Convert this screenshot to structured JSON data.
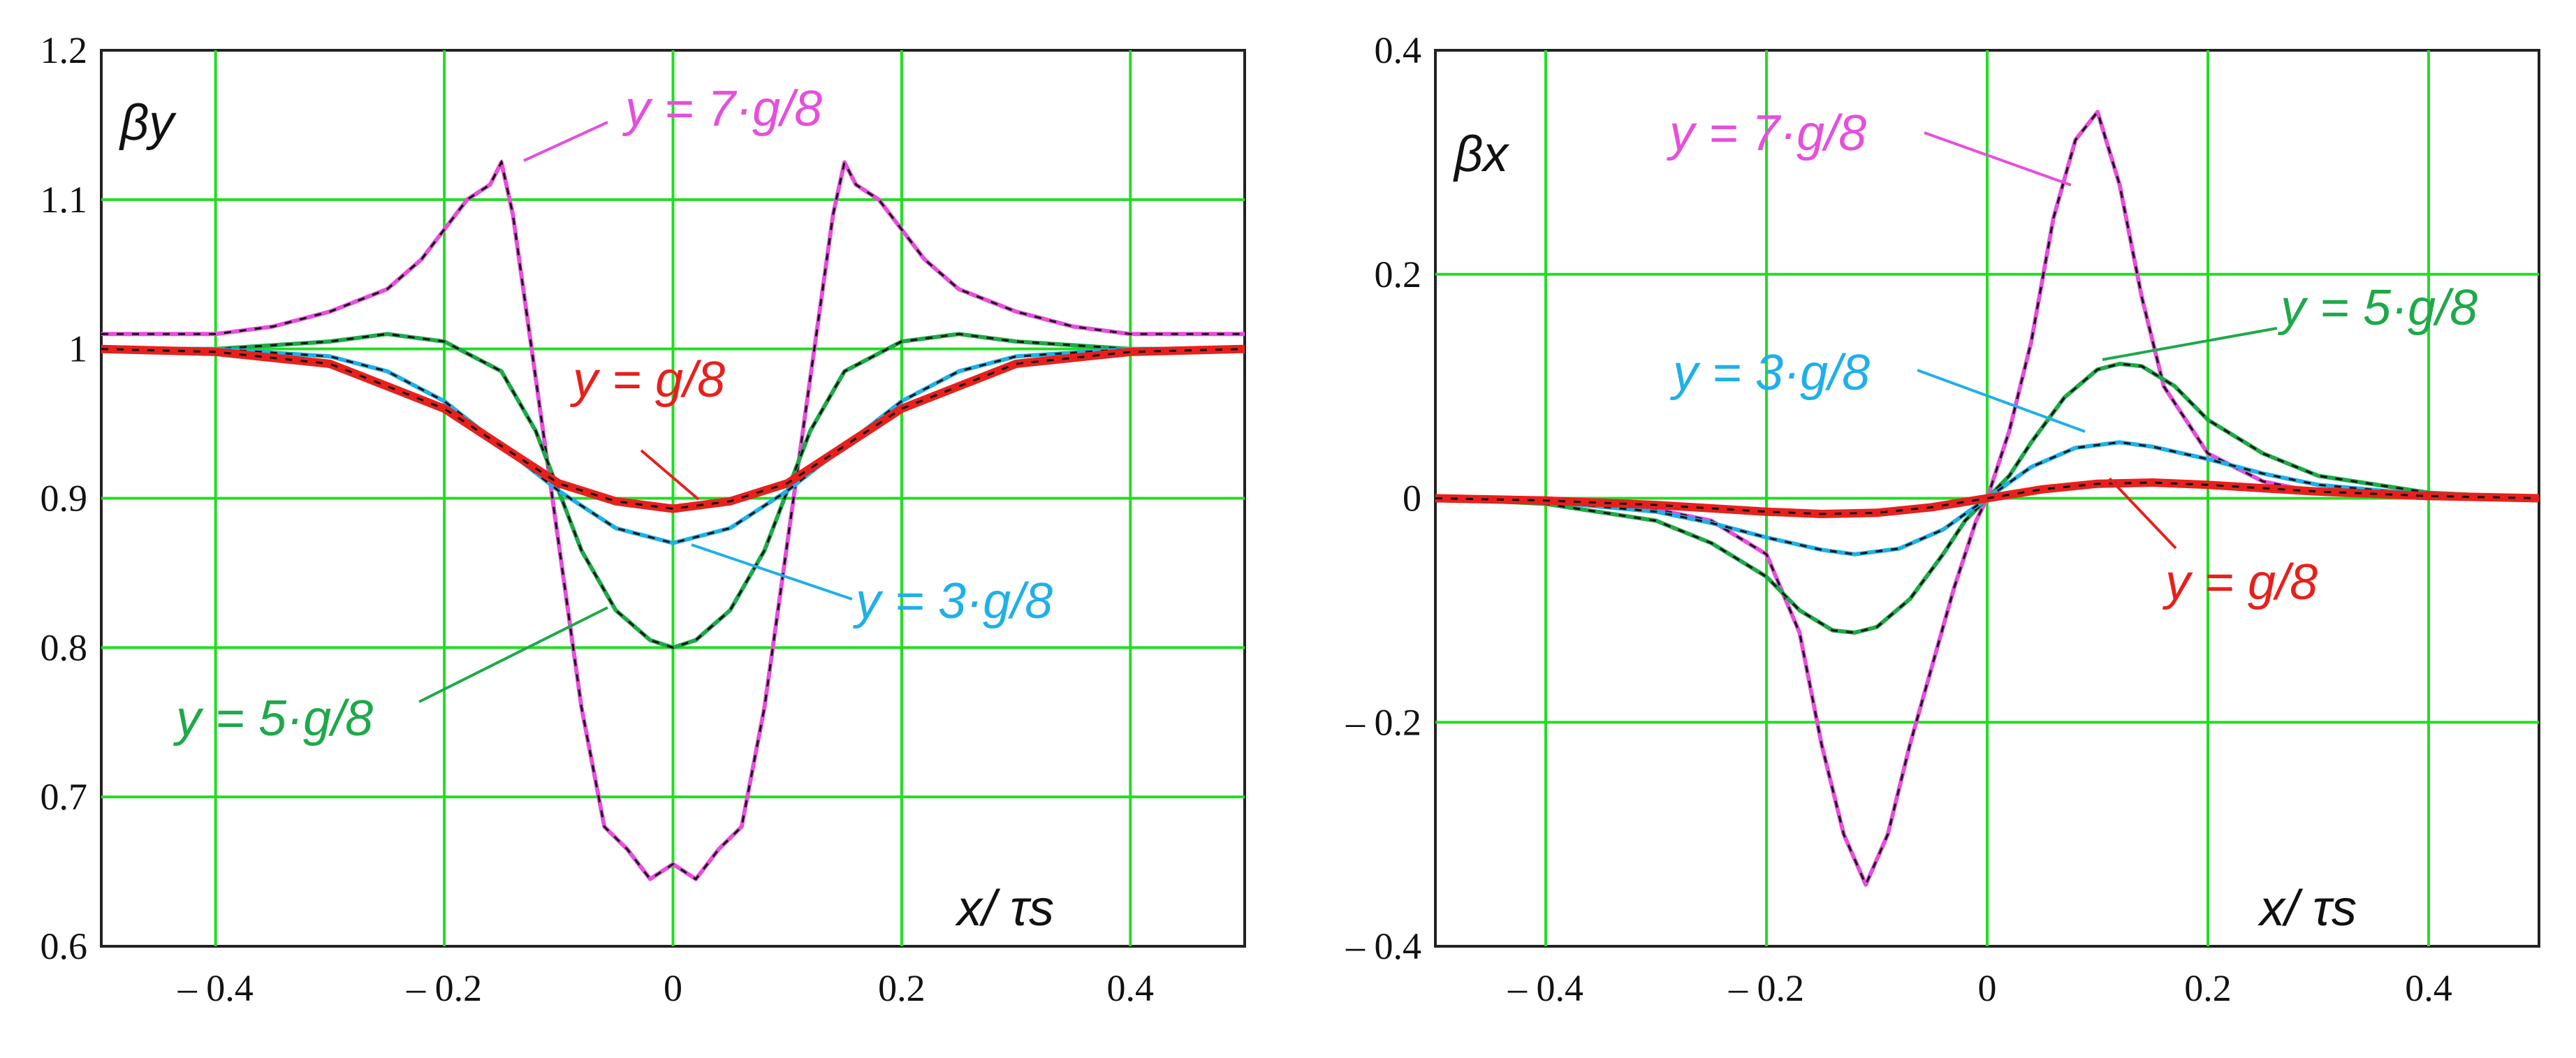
{
  "chart_data": [
    {
      "type": "line",
      "ylabel": "βy",
      "xlabel": "x/ τs",
      "xlim": [
        -0.5,
        0.5
      ],
      "ylim": [
        0.6,
        1.2
      ],
      "xticks": [
        -0.4,
        -0.2,
        0,
        0.2,
        0.4
      ],
      "xtick_labels": [
        "– 0.4",
        "– 0.2",
        "0",
        "0.2",
        "0.4"
      ],
      "yticks": [
        0.6,
        0.7,
        0.8,
        0.9,
        1.0,
        1.1,
        1.2
      ],
      "ytick_labels": [
        "0.6",
        "0.7",
        "0.8",
        "0.9",
        "1",
        "1.1",
        "1.2"
      ],
      "grid": true,
      "series": [
        {
          "name": "y = 7·g/8",
          "color": "#e64fdc",
          "x": [
            -0.5,
            -0.4,
            -0.35,
            -0.3,
            -0.25,
            -0.22,
            -0.2,
            -0.18,
            -0.16,
            -0.15,
            -0.14,
            -0.12,
            -0.1,
            -0.08,
            -0.06,
            -0.04,
            -0.02,
            0,
            0.02,
            0.04,
            0.06,
            0.08,
            0.1,
            0.12,
            0.14,
            0.15,
            0.16,
            0.18,
            0.2,
            0.22,
            0.25,
            0.3,
            0.35,
            0.4,
            0.5
          ],
          "y": [
            1.01,
            1.01,
            1.015,
            1.025,
            1.04,
            1.06,
            1.08,
            1.1,
            1.11,
            1.125,
            1.09,
            0.98,
            0.87,
            0.76,
            0.68,
            0.665,
            0.645,
            0.655,
            0.645,
            0.665,
            0.68,
            0.76,
            0.87,
            0.98,
            1.09,
            1.125,
            1.11,
            1.1,
            1.08,
            1.06,
            1.04,
            1.025,
            1.015,
            1.01,
            1.01
          ]
        },
        {
          "name": "y = 5·g/8",
          "color": "#1fa94a",
          "x": [
            -0.5,
            -0.4,
            -0.3,
            -0.25,
            -0.2,
            -0.15,
            -0.12,
            -0.1,
            -0.08,
            -0.05,
            -0.02,
            0,
            0.02,
            0.05,
            0.08,
            0.1,
            0.12,
            0.15,
            0.2,
            0.25,
            0.3,
            0.4,
            0.5
          ],
          "y": [
            1.0,
            1.0,
            1.005,
            1.01,
            1.005,
            0.985,
            0.945,
            0.905,
            0.865,
            0.825,
            0.805,
            0.8,
            0.805,
            0.825,
            0.865,
            0.905,
            0.945,
            0.985,
            1.005,
            1.01,
            1.005,
            1.0,
            1.0
          ]
        },
        {
          "name": "y = 3·g/8",
          "color": "#1fb0e8",
          "x": [
            -0.5,
            -0.4,
            -0.3,
            -0.25,
            -0.2,
            -0.15,
            -0.1,
            -0.05,
            0,
            0.05,
            0.1,
            0.15,
            0.2,
            0.25,
            0.3,
            0.4,
            0.5
          ],
          "y": [
            1.0,
            1.0,
            0.995,
            0.985,
            0.965,
            0.935,
            0.905,
            0.88,
            0.87,
            0.88,
            0.905,
            0.935,
            0.965,
            0.985,
            0.995,
            1.0,
            1.0
          ]
        },
        {
          "name": "y = g/8",
          "color": "#e8201c",
          "x": [
            -0.5,
            -0.4,
            -0.3,
            -0.25,
            -0.2,
            -0.15,
            -0.1,
            -0.05,
            0,
            0.05,
            0.1,
            0.15,
            0.2,
            0.25,
            0.3,
            0.4,
            0.5
          ],
          "y": [
            1.0,
            0.998,
            0.99,
            0.975,
            0.96,
            0.935,
            0.91,
            0.898,
            0.893,
            0.898,
            0.91,
            0.935,
            0.96,
            0.975,
            0.99,
            0.998,
            1.0
          ]
        }
      ],
      "annotations": [
        "y = 7·g/8",
        "y = g/8",
        "y = 3·g/8",
        "y = 5·g/8"
      ]
    },
    {
      "type": "line",
      "ylabel": "βx",
      "xlabel": "x/ τs",
      "xlim": [
        -0.5,
        0.5
      ],
      "ylim": [
        -0.4,
        0.4
      ],
      "xticks": [
        -0.4,
        -0.2,
        0,
        0.2,
        0.4
      ],
      "xtick_labels": [
        "– 0.4",
        "– 0.2",
        "0",
        "0.2",
        "0.4"
      ],
      "yticks": [
        -0.4,
        -0.2,
        0,
        0.2,
        0.4
      ],
      "ytick_labels": [
        "– 0.4",
        "– 0.2",
        "0",
        "0.2",
        "0.4"
      ],
      "grid": true,
      "series": [
        {
          "name": "y = 7·g/8",
          "color": "#e64fdc",
          "x": [
            -0.5,
            -0.4,
            -0.3,
            -0.25,
            -0.2,
            -0.17,
            -0.15,
            -0.13,
            -0.11,
            -0.09,
            -0.07,
            -0.05,
            -0.03,
            -0.01,
            0,
            0.02,
            0.04,
            0.06,
            0.08,
            0.1,
            0.12,
            0.14,
            0.16,
            0.2,
            0.25,
            0.3,
            0.4,
            0.5
          ],
          "y": [
            0.0,
            0.0,
            -0.01,
            -0.02,
            -0.05,
            -0.12,
            -0.22,
            -0.3,
            -0.345,
            -0.3,
            -0.22,
            -0.15,
            -0.08,
            -0.02,
            0.0,
            0.06,
            0.14,
            0.25,
            0.32,
            0.345,
            0.28,
            0.18,
            0.1,
            0.04,
            0.015,
            0.005,
            0.0,
            0.0
          ]
        },
        {
          "name": "y = 5·g/8",
          "color": "#1fa94a",
          "x": [
            -0.5,
            -0.4,
            -0.3,
            -0.25,
            -0.2,
            -0.17,
            -0.14,
            -0.12,
            -0.1,
            -0.07,
            -0.04,
            -0.02,
            0,
            0.02,
            0.04,
            0.07,
            0.1,
            0.12,
            0.14,
            0.17,
            0.2,
            0.25,
            0.3,
            0.4,
            0.5
          ],
          "y": [
            0.0,
            -0.005,
            -0.02,
            -0.04,
            -0.07,
            -0.1,
            -0.118,
            -0.12,
            -0.115,
            -0.09,
            -0.05,
            -0.02,
            0.0,
            0.02,
            0.05,
            0.09,
            0.115,
            0.12,
            0.118,
            0.1,
            0.07,
            0.04,
            0.02,
            0.005,
            0.0
          ]
        },
        {
          "name": "y = 3·g/8",
          "color": "#1fb0e8",
          "x": [
            -0.5,
            -0.4,
            -0.3,
            -0.25,
            -0.2,
            -0.15,
            -0.12,
            -0.08,
            -0.04,
            0,
            0.04,
            0.08,
            0.12,
            0.15,
            0.2,
            0.25,
            0.3,
            0.4,
            0.5
          ],
          "y": [
            0.0,
            -0.003,
            -0.012,
            -0.022,
            -0.035,
            -0.046,
            -0.05,
            -0.045,
            -0.028,
            0.0,
            0.028,
            0.045,
            0.05,
            0.046,
            0.035,
            0.022,
            0.012,
            0.003,
            0.0
          ]
        },
        {
          "name": "y = g/8",
          "color": "#e8201c",
          "x": [
            -0.5,
            -0.4,
            -0.3,
            -0.2,
            -0.15,
            -0.1,
            -0.05,
            0,
            0.05,
            0.1,
            0.15,
            0.2,
            0.3,
            0.4,
            0.5
          ],
          "y": [
            0.0,
            -0.002,
            -0.006,
            -0.012,
            -0.014,
            -0.013,
            -0.008,
            0.0,
            0.008,
            0.013,
            0.014,
            0.012,
            0.006,
            0.002,
            0.0
          ]
        }
      ],
      "annotations": [
        "y = 7·g/8",
        "y = 5·g/8",
        "y = 3·g/8",
        "y = g/8"
      ]
    }
  ]
}
